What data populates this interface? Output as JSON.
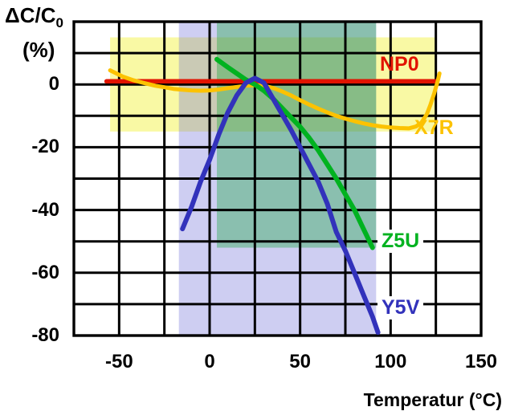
{
  "chart_data": {
    "type": "line",
    "title": "",
    "xlabel": "Temperatur (°C)",
    "ylabel_main": "ΔC/C",
    "ylabel_sub": "0",
    "ylabel_unit": "(%)",
    "xlim": [
      -75,
      150
    ],
    "ylim": [
      -80,
      20
    ],
    "x_gridline_step": 25,
    "y_gridline_step": 10,
    "grid": "on",
    "x_ticks": [
      "-50",
      "0",
      "50",
      "100",
      "150"
    ],
    "x_tick_values": [
      -50,
      0,
      50,
      100,
      150
    ],
    "y_ticks": [
      "0",
      "-20",
      "-40",
      "-60",
      "-80"
    ],
    "y_tick_values": [
      0,
      -20,
      -40,
      -60,
      -80
    ],
    "regions": [
      {
        "name": "X7R-tolerance-band",
        "color": "rgba(244,244,90,0.55)",
        "t_min": -55,
        "t_max": 125,
        "c_min": -15,
        "c_max": 15
      },
      {
        "name": "Y5V-tolerance-band",
        "color": "rgba(105,105,215,0.33)",
        "t_min": -17,
        "t_max": 92,
        "c_min": -80,
        "c_max": 20
      },
      {
        "name": "Z5U-tolerance-band",
        "color": "rgba(0,160,40,0.33)",
        "t_min": 4,
        "t_max": 92,
        "c_min": -52,
        "c_max": 20
      }
    ],
    "series": [
      {
        "name": "NP0",
        "color": "#e11300",
        "stroke_width": 5.5,
        "points": [
          [
            -57,
            1
          ],
          [
            0,
            1
          ],
          [
            125,
            1
          ]
        ]
      },
      {
        "name": "X7R",
        "color": "#fcc200",
        "stroke_width": 5,
        "points": [
          [
            -55,
            4.5
          ],
          [
            -48,
            2.5
          ],
          [
            -42,
            1.3
          ],
          [
            -36,
            0.4
          ],
          [
            -30,
            -0.4
          ],
          [
            -25,
            -0.9
          ],
          [
            -20,
            -1.4
          ],
          [
            -15,
            -1.7
          ],
          [
            -10,
            -1.9
          ],
          [
            -5,
            -2
          ],
          [
            0,
            -1.9
          ],
          [
            5,
            -1.6
          ],
          [
            10,
            -1.2
          ],
          [
            15,
            -0.8
          ],
          [
            20,
            -0.4
          ],
          [
            25,
            -0.2
          ],
          [
            30,
            -0.4
          ],
          [
            35,
            -1.1
          ],
          [
            40,
            -2.2
          ],
          [
            45,
            -3.5
          ],
          [
            50,
            -5
          ],
          [
            55,
            -6.4
          ],
          [
            60,
            -7.7
          ],
          [
            65,
            -8.9
          ],
          [
            70,
            -10
          ],
          [
            75,
            -10.9
          ],
          [
            80,
            -11.7
          ],
          [
            85,
            -12.4
          ],
          [
            90,
            -13
          ],
          [
            95,
            -13.4
          ],
          [
            100,
            -13.7
          ],
          [
            105,
            -13.9
          ],
          [
            110,
            -14
          ],
          [
            114,
            -13.4
          ],
          [
            117,
            -12.2
          ],
          [
            120,
            -9.5
          ],
          [
            122,
            -6.5
          ],
          [
            124,
            -3
          ],
          [
            126,
            1
          ],
          [
            127,
            3.5
          ]
        ]
      },
      {
        "name": "Z5U",
        "color": "#00b220",
        "stroke_width": 6,
        "points": [
          [
            4,
            8
          ],
          [
            10,
            5.5
          ],
          [
            15,
            3.5
          ],
          [
            20,
            1.5
          ],
          [
            25,
            0
          ],
          [
            30,
            -2
          ],
          [
            35,
            -4.5
          ],
          [
            40,
            -7.5
          ],
          [
            45,
            -10.5
          ],
          [
            50,
            -13.5
          ],
          [
            55,
            -17
          ],
          [
            60,
            -21
          ],
          [
            65,
            -25.5
          ],
          [
            70,
            -30
          ],
          [
            75,
            -35
          ],
          [
            80,
            -40
          ],
          [
            85,
            -46
          ],
          [
            90,
            -52
          ]
        ]
      },
      {
        "name": "Y5V",
        "color": "#3232bb",
        "stroke_width": 6,
        "points": [
          [
            -15,
            -46
          ],
          [
            -10,
            -39
          ],
          [
            -5,
            -31
          ],
          [
            0,
            -24
          ],
          [
            5,
            -16
          ],
          [
            10,
            -9
          ],
          [
            15,
            -3.5
          ],
          [
            20,
            0.5
          ],
          [
            25,
            2
          ],
          [
            30,
            0.5
          ],
          [
            35,
            -4.5
          ],
          [
            40,
            -9.5
          ],
          [
            45,
            -14.5
          ],
          [
            50,
            -20
          ],
          [
            55,
            -25.5
          ],
          [
            60,
            -31
          ],
          [
            65,
            -38
          ],
          [
            70,
            -47
          ],
          [
            75,
            -53
          ],
          [
            80,
            -60
          ],
          [
            85,
            -67
          ],
          [
            90,
            -74
          ],
          [
            93,
            -79
          ]
        ]
      }
    ],
    "curve_labels": [
      {
        "series": "NP0",
        "text": "NP0"
      },
      {
        "series": "X7R",
        "text": "X7R"
      },
      {
        "series": "Z5U",
        "text": "Z5U"
      },
      {
        "series": "Y5V",
        "text": "Y5V"
      }
    ],
    "colors": {
      "grid": "#000000",
      "background": "#ffffff",
      "np0": "#e11300",
      "x7r": "#fcc200",
      "z5u": "#00b220",
      "y5v": "#3232bb"
    }
  }
}
